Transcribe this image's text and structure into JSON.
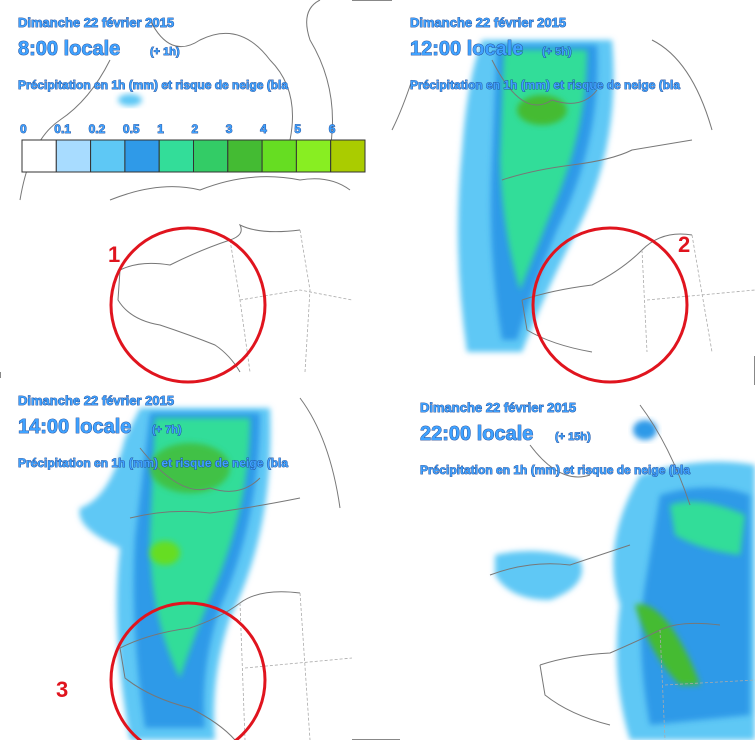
{
  "panels": [
    {
      "date": "Dimanche 22 février 2015",
      "time": "8:00 locale",
      "offset": "(+ 1h)",
      "caption": "Précipitation en 1h (mm) et risque de neige (bla"
    },
    {
      "date": "Dimanche 22 février 2015",
      "time": "12:00 locale",
      "offset": "(+ 5h)",
      "caption": "Précipitation en 1h (mm) et risque de neige (bla"
    },
    {
      "date": "Dimanche 22 février 2015",
      "time": "14:00 locale",
      "offset": "(+ 7h)",
      "caption": "Précipitation en 1h (mm) et risque de neige (bla"
    },
    {
      "date": "Dimanche 22 février 2015",
      "time": "22:00 locale",
      "offset": "(+ 15h)",
      "caption": "Précipitation en 1h (mm) et risque de neige (bla"
    }
  ],
  "legend": {
    "labels": [
      "0",
      "0.1",
      "0.2",
      "0.5",
      "1",
      "2",
      "3",
      "4",
      "5",
      "6"
    ],
    "colors": [
      "#ffffff",
      "#a8dcff",
      "#5ec8f5",
      "#2f9ae8",
      "#33dd99",
      "#33cc66",
      "#44bb33",
      "#66dd22",
      "#88ee22",
      "#aacc00"
    ]
  },
  "markers": [
    "1",
    "2",
    "3"
  ]
}
